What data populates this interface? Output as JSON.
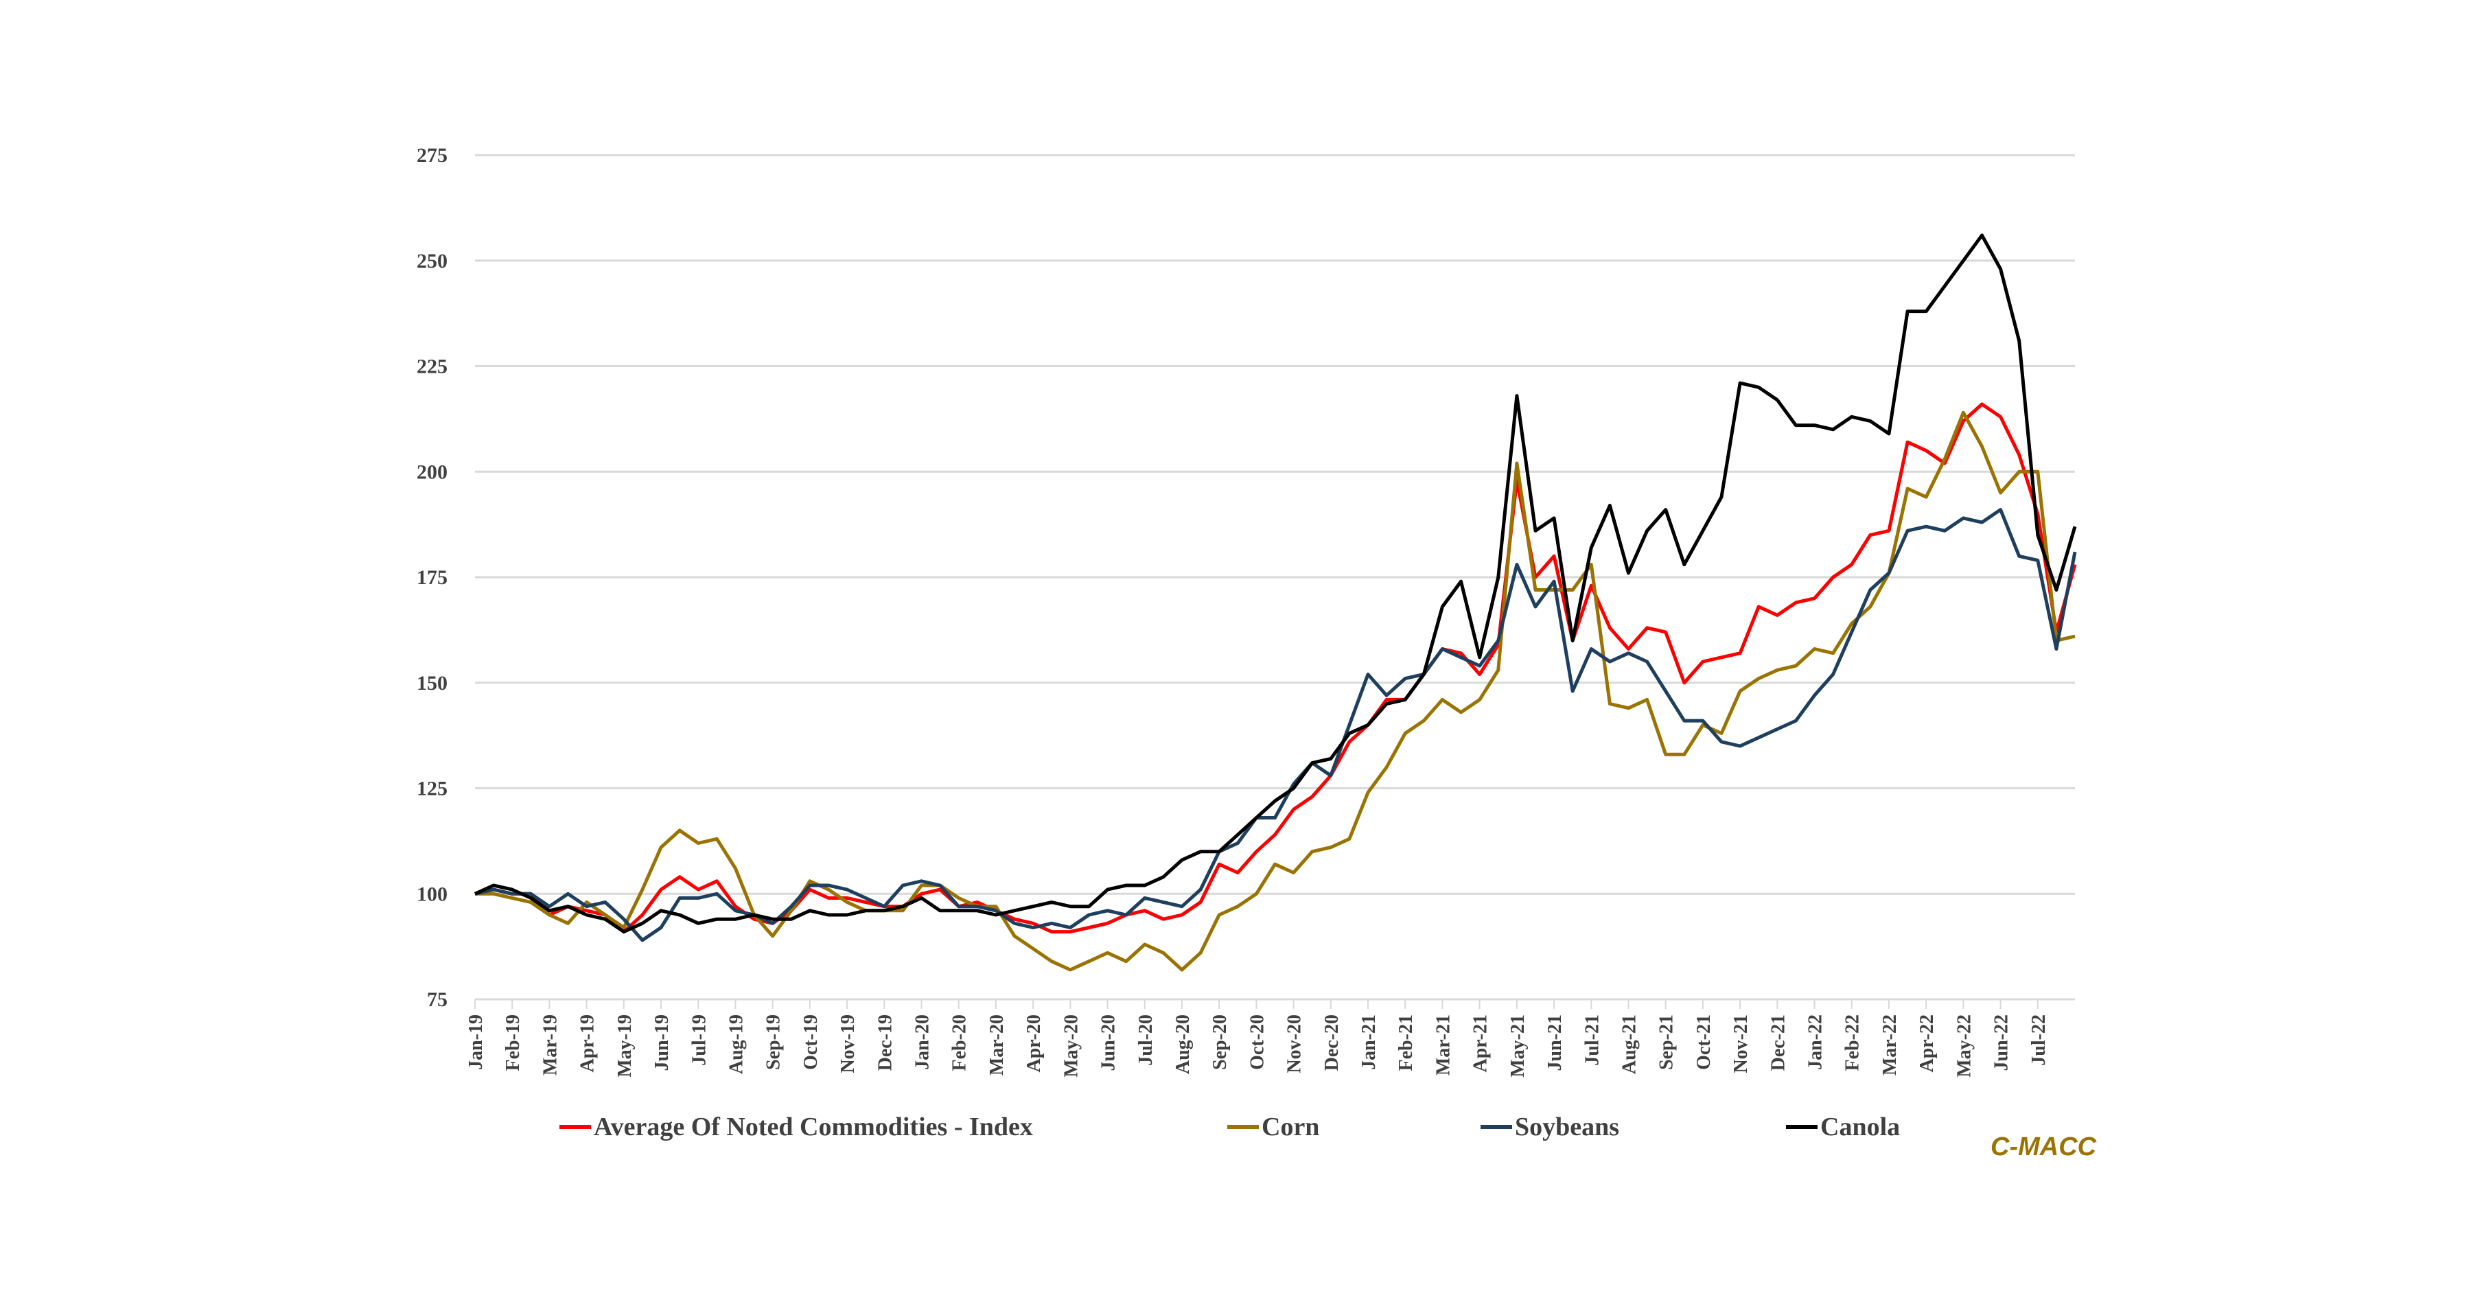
{
  "chart_data": {
    "type": "line",
    "title": "",
    "xlabel": "",
    "ylabel": "",
    "ylim": [
      75,
      275
    ],
    "y_ticks": [
      75,
      100,
      125,
      150,
      175,
      200,
      225,
      250,
      275
    ],
    "grid": true,
    "legend_position": "bottom",
    "x_unit": "months since Jan-19",
    "x_tick_labels": [
      "Jan-19",
      "Feb-19",
      "Mar-19",
      "Apr-19",
      "May-19",
      "Jun-19",
      "Jul-19",
      "Aug-19",
      "Sep-19",
      "Oct-19",
      "Nov-19",
      "Dec-19",
      "Jan-20",
      "Feb-20",
      "Mar-20",
      "Apr-20",
      "May-20",
      "Jun-20",
      "Jul-20",
      "Aug-20",
      "Sep-20",
      "Oct-20",
      "Nov-20",
      "Dec-20",
      "Jan-21",
      "Feb-21",
      "Mar-21",
      "Apr-21",
      "May-21",
      "Jun-21",
      "Jul-21",
      "Aug-21",
      "Sep-21",
      "Oct-21",
      "Nov-21",
      "Dec-21",
      "Jan-22",
      "Feb-22",
      "Mar-22",
      "Apr-22",
      "May-22",
      "Jun-22",
      "Jul-22"
    ],
    "x_step": 0.5,
    "series": [
      {
        "name": "Average Of Noted Commodities - Index",
        "color": "#ff0000",
        "values": [
          100,
          101,
          100,
          100,
          95,
          97,
          96,
          95,
          91,
          95,
          101,
          104,
          101,
          103,
          97,
          94,
          93,
          96,
          101,
          99,
          99,
          98,
          97,
          97,
          100,
          101,
          97,
          98,
          96,
          94,
          93,
          91,
          91,
          92,
          93,
          95,
          96,
          94,
          95,
          98,
          107,
          105,
          110,
          114,
          120,
          123,
          128,
          136,
          140,
          146,
          146,
          152,
          158,
          157,
          152,
          159,
          198,
          175,
          180,
          160,
          173,
          163,
          158,
          163,
          162,
          150,
          155,
          156,
          157,
          168,
          166,
          169,
          170,
          175,
          178,
          185,
          186,
          207,
          205,
          202,
          212,
          216,
          213,
          204,
          190,
          162,
          178
        ]
      },
      {
        "name": "Corn",
        "color": "#9a7300",
        "values": [
          100,
          100,
          99,
          98,
          95,
          93,
          98,
          95,
          92,
          101,
          111,
          115,
          112,
          113,
          106,
          95,
          90,
          96,
          103,
          101,
          98,
          96,
          96,
          96,
          102,
          102,
          99,
          97,
          97,
          90,
          87,
          84,
          82,
          84,
          86,
          84,
          88,
          86,
          82,
          86,
          95,
          97,
          100,
          107,
          105,
          110,
          111,
          113,
          124,
          130,
          138,
          141,
          146,
          143,
          146,
          153,
          202,
          172,
          172,
          172,
          178,
          145,
          144,
          146,
          133,
          133,
          140,
          138,
          148,
          151,
          153,
          154,
          158,
          157,
          164,
          168,
          176,
          196,
          194,
          203,
          214,
          206,
          195,
          200,
          200,
          160,
          161
        ]
      },
      {
        "name": "Soybeans",
        "color": "#1f3f5f",
        "values": [
          100,
          101,
          100,
          100,
          97,
          100,
          97,
          98,
          94,
          89,
          92,
          99,
          99,
          100,
          96,
          95,
          93,
          97,
          102,
          102,
          101,
          99,
          97,
          102,
          103,
          102,
          97,
          97,
          96,
          93,
          92,
          93,
          92,
          95,
          96,
          95,
          99,
          98,
          97,
          101,
          110,
          112,
          118,
          118,
          126,
          131,
          128,
          140,
          152,
          147,
          151,
          152,
          158,
          156,
          154,
          160,
          178,
          168,
          174,
          148,
          158,
          155,
          157,
          155,
          148,
          141,
          141,
          136,
          135,
          137,
          139,
          141,
          147,
          152,
          162,
          172,
          176,
          186,
          187,
          186,
          189,
          188,
          191,
          180,
          179,
          158,
          181
        ]
      },
      {
        "name": "Canola",
        "color": "#000000",
        "values": [
          100,
          102,
          101,
          99,
          96,
          97,
          95,
          94,
          91,
          93,
          96,
          95,
          93,
          94,
          94,
          95,
          94,
          94,
          96,
          95,
          95,
          96,
          96,
          97,
          99,
          96,
          96,
          96,
          95,
          96,
          97,
          98,
          97,
          97,
          101,
          102,
          102,
          104,
          108,
          110,
          110,
          114,
          118,
          122,
          125,
          131,
          132,
          138,
          140,
          145,
          146,
          152,
          168,
          174,
          156,
          175,
          218,
          186,
          189,
          160,
          182,
          192,
          176,
          186,
          191,
          178,
          186,
          194,
          221,
          220,
          217,
          211,
          211,
          210,
          213,
          212,
          209,
          238,
          238,
          244,
          250,
          256,
          248,
          231,
          185,
          172,
          187
        ]
      }
    ]
  },
  "brand": "C-MACC"
}
